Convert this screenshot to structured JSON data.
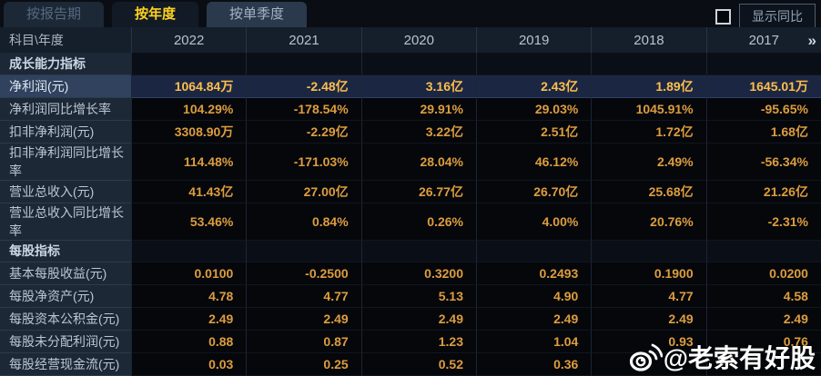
{
  "tabs": [
    {
      "label": "按报告期",
      "active": false
    },
    {
      "label": "按年度",
      "active": true
    },
    {
      "label": "按单季度",
      "active": false
    }
  ],
  "controls": {
    "show_yoy_label": "显示同比",
    "checkbox_checked": false
  },
  "table": {
    "corner_header": "科目\\年度",
    "year_columns": [
      "2022",
      "2021",
      "2020",
      "2019",
      "2018",
      "2017"
    ],
    "more_glyph": "»",
    "rows": [
      {
        "label": "成长能力指标",
        "type": "section",
        "values": [
          "",
          "",
          "",
          "",
          "",
          ""
        ]
      },
      {
        "label": "净利润(元)",
        "type": "highlight",
        "values": [
          "1064.84万",
          "-2.48亿",
          "3.16亿",
          "2.43亿",
          "1.89亿",
          "1645.01万"
        ]
      },
      {
        "label": "净利润同比增长率",
        "type": "data",
        "values": [
          "104.29%",
          "-178.54%",
          "29.91%",
          "29.03%",
          "1045.91%",
          "-95.65%"
        ]
      },
      {
        "label": "扣非净利润(元)",
        "type": "data",
        "values": [
          "3308.90万",
          "-2.29亿",
          "3.22亿",
          "2.51亿",
          "1.72亿",
          "1.68亿"
        ]
      },
      {
        "label": "扣非净利润同比增长率",
        "type": "data",
        "values": [
          "114.48%",
          "-171.03%",
          "28.04%",
          "46.12%",
          "2.49%",
          "-56.34%"
        ]
      },
      {
        "label": "营业总收入(元)",
        "type": "data",
        "values": [
          "41.43亿",
          "27.00亿",
          "26.77亿",
          "26.70亿",
          "25.68亿",
          "21.26亿"
        ]
      },
      {
        "label": "营业总收入同比增长率",
        "type": "data",
        "values": [
          "53.46%",
          "0.84%",
          "0.26%",
          "4.00%",
          "20.76%",
          "-2.31%"
        ]
      },
      {
        "label": "每股指标",
        "type": "section",
        "values": [
          "",
          "",
          "",
          "",
          "",
          ""
        ]
      },
      {
        "label": "基本每股收益(元)",
        "type": "data",
        "values": [
          "0.0100",
          "-0.2500",
          "0.3200",
          "0.2493",
          "0.1900",
          "0.0200"
        ]
      },
      {
        "label": "每股净资产(元)",
        "type": "data",
        "values": [
          "4.78",
          "4.77",
          "5.13",
          "4.90",
          "4.77",
          "4.58"
        ]
      },
      {
        "label": "每股资本公积金(元)",
        "type": "data",
        "values": [
          "2.49",
          "2.49",
          "2.49",
          "2.49",
          "2.49",
          "2.49"
        ]
      },
      {
        "label": "每股未分配利润(元)",
        "type": "data",
        "values": [
          "0.88",
          "0.87",
          "1.23",
          "1.04",
          "0.93",
          "0.76"
        ]
      },
      {
        "label": "每股经营现金流(元)",
        "type": "data",
        "values": [
          "0.03",
          "0.25",
          "0.52",
          "0.36",
          "",
          ""
        ]
      }
    ]
  },
  "watermark": {
    "text": "@老索有好股",
    "icon": "weibo-icon"
  },
  "colors": {
    "value_orange": "#dd9d3e",
    "highlight_orange": "#ffbe4d",
    "active_tab_yellow": "#ffd21e",
    "label_cell_bg": "#1c2836",
    "highlight_row_bg": "#1b2742",
    "header_row_bg": "#151e2b"
  }
}
